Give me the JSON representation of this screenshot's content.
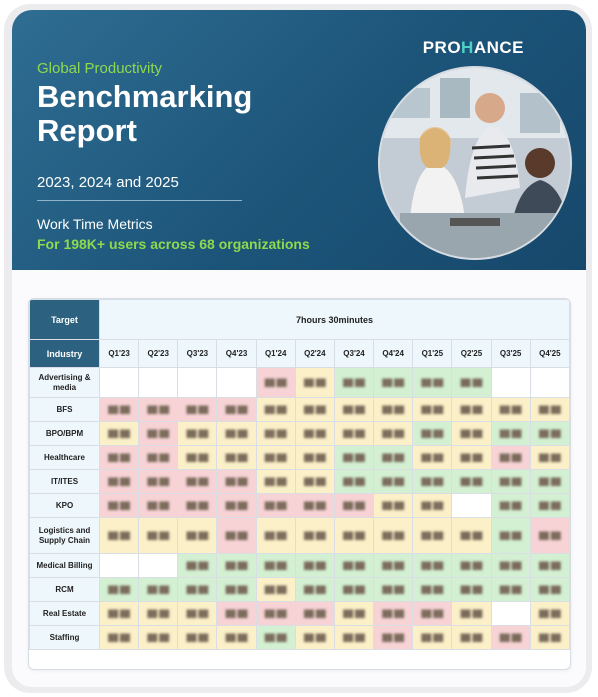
{
  "header": {
    "logo": {
      "pre": "PRO",
      "accent": "H",
      "post": "ANCE"
    },
    "kicker": "Global Productivity",
    "title": "Benchmarking Report",
    "years": "2023, 2024 and 2025",
    "metric": "Work Time Metrics",
    "users": "For 198K+ users across 68 organizations",
    "photo": "team-working-photo"
  },
  "table": {
    "target_label": "Target",
    "target_value": "7hours 30minutes",
    "industry_label": "Industry",
    "quarters": [
      "Q1'23",
      "Q2'23",
      "Q3'23",
      "Q4'23",
      "Q1'24",
      "Q2'24",
      "Q3'24",
      "Q4'24",
      "Q1'25",
      "Q2'25",
      "Q3'25",
      "Q4'25"
    ],
    "rows": [
      {
        "label": "Advertising & media",
        "cells": [
          "w",
          "w",
          "w",
          "w",
          "p",
          "y",
          "g",
          "g",
          "g",
          "g",
          "w",
          "w"
        ]
      },
      {
        "label": "BFS",
        "cells": [
          "p",
          "p",
          "p",
          "p",
          "y",
          "y",
          "y",
          "y",
          "y",
          "y",
          "y",
          "y"
        ]
      },
      {
        "label": "BPO/BPM",
        "cells": [
          "y",
          "p",
          "y",
          "y",
          "y",
          "y",
          "y",
          "y",
          "g",
          "y",
          "g",
          "g"
        ]
      },
      {
        "label": "Healthcare",
        "cells": [
          "p",
          "p",
          "y",
          "y",
          "y",
          "y",
          "g",
          "g",
          "y",
          "y",
          "p",
          "y"
        ]
      },
      {
        "label": "IT/ITES",
        "cells": [
          "p",
          "p",
          "p",
          "p",
          "y",
          "y",
          "g",
          "g",
          "g",
          "g",
          "g",
          "g"
        ]
      },
      {
        "label": "KPO",
        "cells": [
          "p",
          "p",
          "p",
          "p",
          "p",
          "p",
          "p",
          "y",
          "y",
          "w",
          "g",
          "g"
        ]
      },
      {
        "label": "Logistics and Supply Chain",
        "cells": [
          "y",
          "y",
          "y",
          "p",
          "y",
          "y",
          "y",
          "y",
          "y",
          "y",
          "g",
          "p"
        ]
      },
      {
        "label": "Medical Billing",
        "cells": [
          "w",
          "w",
          "g",
          "g",
          "g",
          "g",
          "g",
          "g",
          "g",
          "g",
          "g",
          "g"
        ]
      },
      {
        "label": "RCM",
        "cells": [
          "g",
          "g",
          "g",
          "g",
          "y",
          "g",
          "g",
          "g",
          "g",
          "g",
          "g",
          "g"
        ]
      },
      {
        "label": "Real Estate",
        "cells": [
          "y",
          "y",
          "y",
          "p",
          "p",
          "p",
          "y",
          "p",
          "p",
          "y",
          "w",
          "y"
        ]
      },
      {
        "label": "Staffing",
        "cells": [
          "y",
          "y",
          "y",
          "y",
          "g",
          "y",
          "y",
          "p",
          "y",
          "y",
          "p",
          "y"
        ]
      }
    ]
  }
}
